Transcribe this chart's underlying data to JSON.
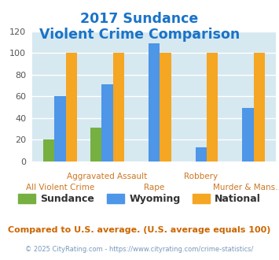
{
  "title_line1": "2017 Sundance",
  "title_line2": "Violent Crime Comparison",
  "categories": [
    "All Violent Crime",
    "Aggravated Assault",
    "Rape",
    "Robbery",
    "Murder & Mans..."
  ],
  "categories_top": [
    "",
    "Aggravated Assault",
    "",
    "Robbery",
    ""
  ],
  "categories_bot": [
    "All Violent Crime",
    "",
    "Rape",
    "",
    "Murder & Mans..."
  ],
  "sundance": [
    20,
    31,
    0,
    0,
    0
  ],
  "wyoming": [
    60,
    71,
    109,
    13,
    49
  ],
  "national": [
    100,
    100,
    100,
    100,
    100
  ],
  "color_sundance": "#76b041",
  "color_wyoming": "#4d96e8",
  "color_national": "#f5a623",
  "color_title": "#1a73c8",
  "color_bg": "#d6e8f0",
  "color_footnote": "#cc6600",
  "color_copyright": "#7799bb",
  "color_xlabel": "#cc7722",
  "ylim": [
    0,
    120
  ],
  "yticks": [
    0,
    20,
    40,
    60,
    80,
    100,
    120
  ],
  "footnote": "Compared to U.S. average. (U.S. average equals 100)",
  "copyright": "© 2025 CityRating.com - https://www.cityrating.com/crime-statistics/"
}
